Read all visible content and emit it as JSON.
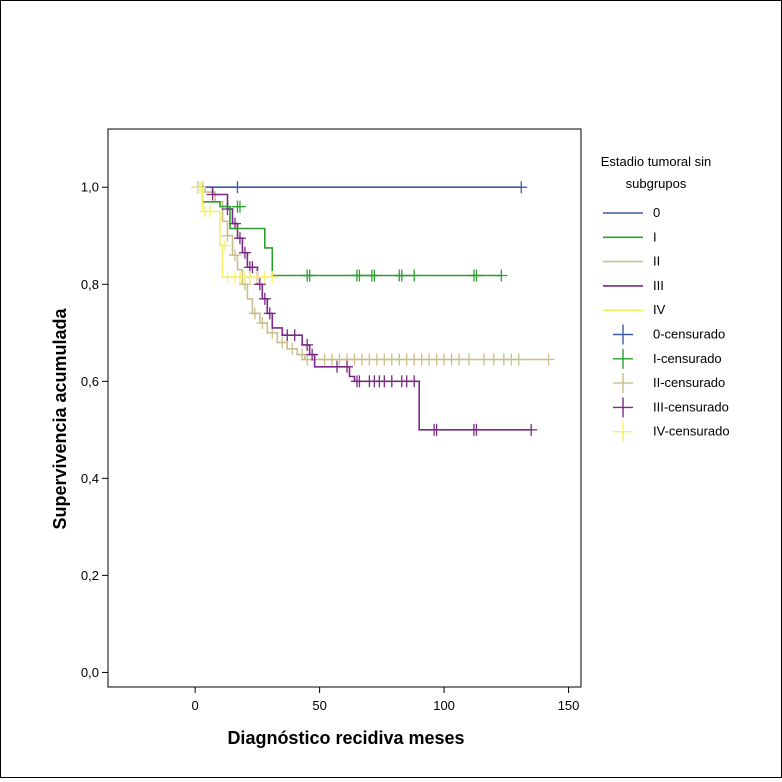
{
  "chart_data": {
    "type": "line",
    "subtype": "kaplan-meier-step",
    "title": "",
    "xlabel": "Diagnóstico recidiva meses",
    "ylabel": "Supervivencia acumulada",
    "xlim": [
      -35,
      155
    ],
    "ylim": [
      -0.03,
      1.12
    ],
    "xticks": [
      0,
      50,
      100,
      150
    ],
    "xtick_labels": [
      "0",
      "50",
      "100",
      "150"
    ],
    "yticks": [
      0.0,
      0.2,
      0.4,
      0.6,
      0.8,
      1.0
    ],
    "ytick_labels": [
      "0,0",
      "0,2",
      "0,4",
      "0,6",
      "0,8",
      "1,0"
    ],
    "grid": false,
    "legend": {
      "title": "Estadio tumoral sin subgrupos",
      "title_lines": [
        "Estadio tumoral sin",
        "subgrupos"
      ],
      "placement": "right",
      "entries": [
        {
          "label": "0",
          "kind": "line",
          "color": "#3c5aa6"
        },
        {
          "label": "I",
          "kind": "line",
          "color": "#2ca02c"
        },
        {
          "label": "II",
          "kind": "line",
          "color": "#c8bf8c"
        },
        {
          "label": "III",
          "kind": "line",
          "color": "#7a2a85"
        },
        {
          "label": "IV",
          "kind": "line",
          "color": "#f4f06a"
        },
        {
          "label": "0-censurado",
          "kind": "censor",
          "color": "#3c5aa6"
        },
        {
          "label": "I-censurado",
          "kind": "censor",
          "color": "#2ca02c"
        },
        {
          "label": "II-censurado",
          "kind": "censor",
          "color": "#c8bf8c"
        },
        {
          "label": "III-censurado",
          "kind": "censor",
          "color": "#7a2a85"
        },
        {
          "label": "IV-censurado",
          "kind": "censor",
          "color": "#f4f06a"
        }
      ]
    },
    "series": [
      {
        "name": "0",
        "color": "#3c5aa6",
        "steps": [
          [
            0,
            1.0
          ],
          [
            131,
            1.0
          ]
        ],
        "censored": [
          [
            1,
            1.0
          ],
          [
            17,
            1.0
          ],
          [
            131,
            1.0
          ]
        ]
      },
      {
        "name": "I",
        "color": "#2ca02c",
        "steps": [
          [
            0,
            1.0
          ],
          [
            3,
            1.0
          ],
          [
            3,
            0.97
          ],
          [
            10,
            0.97
          ],
          [
            10,
            0.96
          ],
          [
            14,
            0.96
          ],
          [
            14,
            0.915
          ],
          [
            28,
            0.915
          ],
          [
            28,
            0.875
          ],
          [
            31,
            0.875
          ],
          [
            31,
            0.818
          ],
          [
            123,
            0.818
          ]
        ],
        "censored": [
          [
            17,
            0.96
          ],
          [
            18,
            0.96
          ],
          [
            45,
            0.818
          ],
          [
            46,
            0.818
          ],
          [
            65,
            0.818
          ],
          [
            66,
            0.818
          ],
          [
            71,
            0.818
          ],
          [
            72,
            0.818
          ],
          [
            82,
            0.818
          ],
          [
            83,
            0.818
          ],
          [
            88,
            0.818
          ],
          [
            112,
            0.818
          ],
          [
            113,
            0.818
          ],
          [
            123,
            0.818
          ]
        ]
      },
      {
        "name": "II",
        "color": "#c8bf8c",
        "steps": [
          [
            0,
            1.0
          ],
          [
            4,
            1.0
          ],
          [
            4,
            0.99
          ],
          [
            8,
            0.99
          ],
          [
            8,
            0.97
          ],
          [
            11,
            0.97
          ],
          [
            11,
            0.93
          ],
          [
            13,
            0.93
          ],
          [
            13,
            0.9
          ],
          [
            15,
            0.9
          ],
          [
            15,
            0.86
          ],
          [
            17,
            0.86
          ],
          [
            17,
            0.83
          ],
          [
            19,
            0.83
          ],
          [
            19,
            0.8
          ],
          [
            21,
            0.8
          ],
          [
            21,
            0.77
          ],
          [
            23,
            0.77
          ],
          [
            23,
            0.74
          ],
          [
            26,
            0.74
          ],
          [
            26,
            0.72
          ],
          [
            29,
            0.72
          ],
          [
            29,
            0.7
          ],
          [
            33,
            0.7
          ],
          [
            33,
            0.68
          ],
          [
            37,
            0.68
          ],
          [
            37,
            0.667
          ],
          [
            41,
            0.667
          ],
          [
            41,
            0.655
          ],
          [
            44,
            0.655
          ],
          [
            44,
            0.645
          ],
          [
            142,
            0.645
          ]
        ],
        "censored": [
          [
            3,
            1.0
          ],
          [
            13,
            0.9
          ],
          [
            16,
            0.86
          ],
          [
            20,
            0.8
          ],
          [
            24,
            0.74
          ],
          [
            27,
            0.72
          ],
          [
            31,
            0.7
          ],
          [
            35,
            0.68
          ],
          [
            39,
            0.667
          ],
          [
            43,
            0.655
          ],
          [
            45,
            0.645
          ],
          [
            48,
            0.645
          ],
          [
            52,
            0.645
          ],
          [
            55,
            0.645
          ],
          [
            58,
            0.645
          ],
          [
            61,
            0.645
          ],
          [
            64,
            0.645
          ],
          [
            67,
            0.645
          ],
          [
            70,
            0.645
          ],
          [
            73,
            0.645
          ],
          [
            76,
            0.645
          ],
          [
            79,
            0.645
          ],
          [
            82,
            0.645
          ],
          [
            85,
            0.645
          ],
          [
            88,
            0.645
          ],
          [
            91,
            0.645
          ],
          [
            94,
            0.645
          ],
          [
            97,
            0.645
          ],
          [
            100,
            0.645
          ],
          [
            103,
            0.645
          ],
          [
            106,
            0.645
          ],
          [
            110,
            0.645
          ],
          [
            116,
            0.645
          ],
          [
            120,
            0.645
          ],
          [
            124,
            0.645
          ],
          [
            127,
            0.645
          ],
          [
            130,
            0.645
          ],
          [
            142,
            0.645
          ]
        ]
      },
      {
        "name": "III",
        "color": "#7a2a85",
        "steps": [
          [
            0,
            1.0
          ],
          [
            7,
            1.0
          ],
          [
            7,
            0.985
          ],
          [
            13,
            0.985
          ],
          [
            13,
            0.955
          ],
          [
            15,
            0.955
          ],
          [
            15,
            0.925
          ],
          [
            17,
            0.925
          ],
          [
            17,
            0.895
          ],
          [
            19,
            0.895
          ],
          [
            19,
            0.865
          ],
          [
            21,
            0.865
          ],
          [
            21,
            0.835
          ],
          [
            25,
            0.835
          ],
          [
            25,
            0.8
          ],
          [
            27,
            0.8
          ],
          [
            27,
            0.77
          ],
          [
            29,
            0.77
          ],
          [
            29,
            0.74
          ],
          [
            31,
            0.74
          ],
          [
            31,
            0.71
          ],
          [
            35,
            0.71
          ],
          [
            35,
            0.695
          ],
          [
            43,
            0.695
          ],
          [
            43,
            0.675
          ],
          [
            46,
            0.675
          ],
          [
            46,
            0.655
          ],
          [
            48,
            0.655
          ],
          [
            48,
            0.63
          ],
          [
            62,
            0.63
          ],
          [
            62,
            0.61
          ],
          [
            64,
            0.61
          ],
          [
            64,
            0.6
          ],
          [
            90,
            0.6
          ],
          [
            90,
            0.5
          ],
          [
            135,
            0.5
          ]
        ],
        "censored": [
          [
            1,
            1.0
          ],
          [
            7,
            0.985
          ],
          [
            13,
            0.955
          ],
          [
            16,
            0.925
          ],
          [
            18,
            0.895
          ],
          [
            20,
            0.865
          ],
          [
            22,
            0.835
          ],
          [
            23,
            0.835
          ],
          [
            26,
            0.8
          ],
          [
            28,
            0.77
          ],
          [
            30,
            0.74
          ],
          [
            37,
            0.695
          ],
          [
            40,
            0.695
          ],
          [
            45,
            0.675
          ],
          [
            47,
            0.655
          ],
          [
            57,
            0.63
          ],
          [
            61,
            0.63
          ],
          [
            65,
            0.6
          ],
          [
            66,
            0.6
          ],
          [
            70,
            0.6
          ],
          [
            72,
            0.6
          ],
          [
            74,
            0.6
          ],
          [
            76,
            0.6
          ],
          [
            79,
            0.6
          ],
          [
            83,
            0.6
          ],
          [
            85,
            0.6
          ],
          [
            88,
            0.6
          ],
          [
            96,
            0.5
          ],
          [
            97,
            0.5
          ],
          [
            112,
            0.5
          ],
          [
            113,
            0.5
          ],
          [
            135,
            0.5
          ]
        ]
      },
      {
        "name": "IV",
        "color": "#f4f06a",
        "steps": [
          [
            0,
            1.0
          ],
          [
            3,
            1.0
          ],
          [
            3,
            0.95
          ],
          [
            10,
            0.95
          ],
          [
            10,
            0.88
          ],
          [
            11,
            0.88
          ],
          [
            11,
            0.815
          ],
          [
            31,
            0.815
          ]
        ],
        "censored": [
          [
            1,
            1.0
          ],
          [
            2,
            1.0
          ],
          [
            4,
            0.95
          ],
          [
            6,
            0.95
          ],
          [
            12,
            0.88
          ],
          [
            13,
            0.815
          ],
          [
            16,
            0.815
          ],
          [
            18,
            0.815
          ],
          [
            20,
            0.815
          ],
          [
            22,
            0.815
          ],
          [
            25,
            0.815
          ],
          [
            28,
            0.815
          ],
          [
            31,
            0.815
          ]
        ]
      }
    ]
  }
}
